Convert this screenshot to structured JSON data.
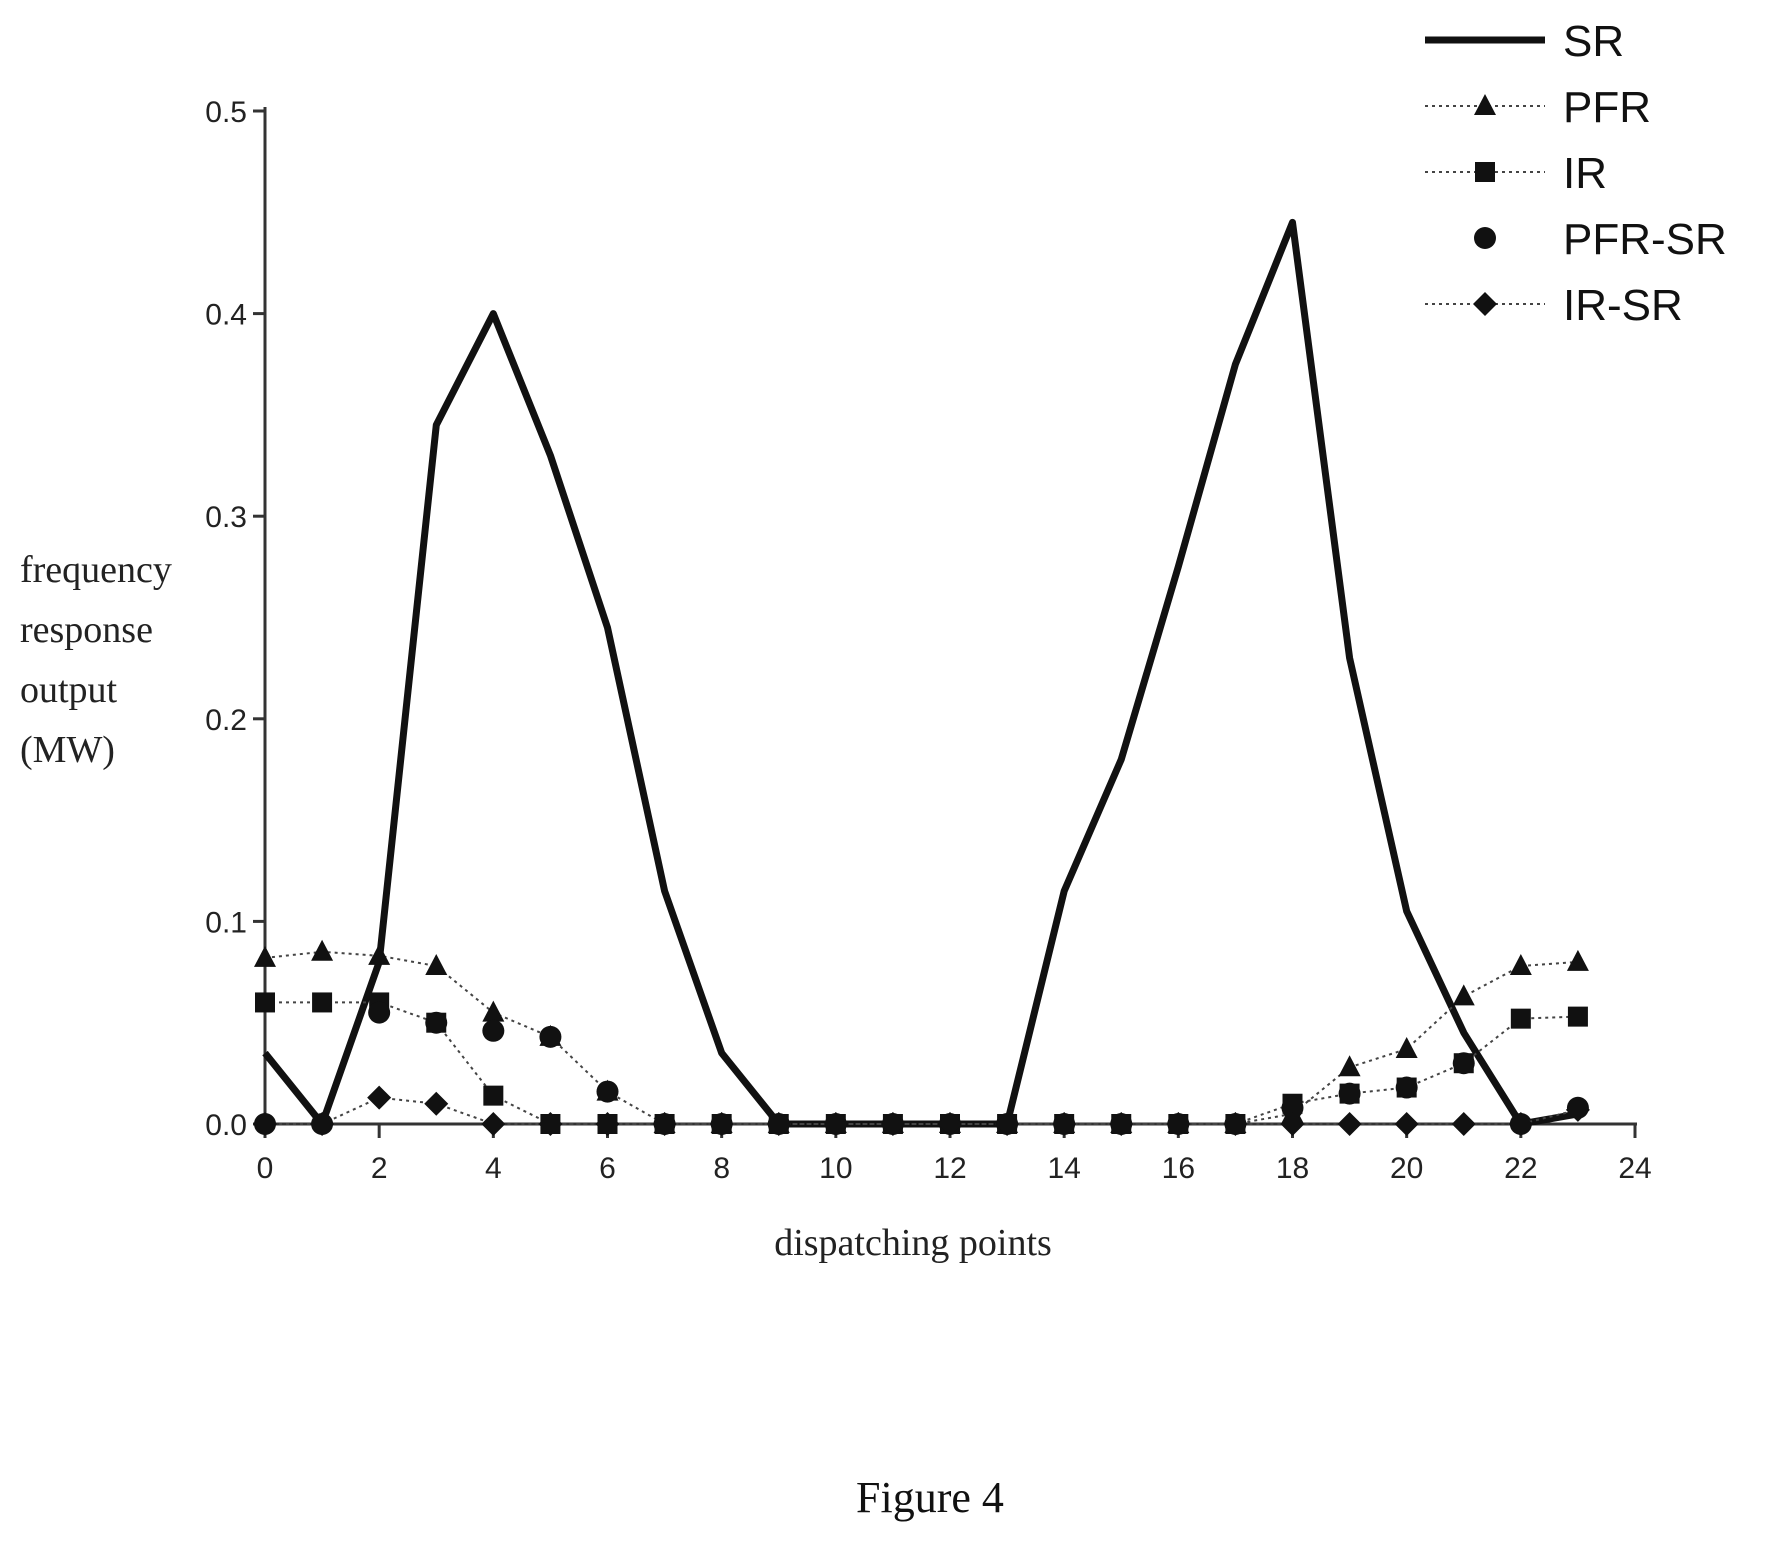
{
  "figure_caption": "Figure 4",
  "chart_data": {
    "type": "line",
    "xlabel": "dispatching points",
    "ylabel_lines": [
      "frequency",
      "response",
      "output",
      "(MW)"
    ],
    "xlim": [
      0,
      24
    ],
    "ylim": [
      0,
      0.5
    ],
    "x_ticks": [
      0,
      2,
      4,
      6,
      8,
      10,
      12,
      14,
      16,
      18,
      20,
      22,
      24
    ],
    "y_ticks": [
      "0.0",
      "0.1",
      "0.2",
      "0.3",
      "0.4",
      "0.5"
    ],
    "y_tick_values": [
      0,
      0.1,
      0.2,
      0.3,
      0.4,
      0.5
    ],
    "grid": false,
    "legend_position": "top-right",
    "x": [
      0,
      1,
      2,
      3,
      4,
      5,
      6,
      7,
      8,
      9,
      10,
      11,
      12,
      13,
      14,
      15,
      16,
      17,
      18,
      19,
      20,
      21,
      22,
      23
    ],
    "series": [
      {
        "name": "SR",
        "style": "solid-thick",
        "marker": "none",
        "values": [
          0.035,
          0,
          0.08,
          0.345,
          0.4,
          0.33,
          0.245,
          0.115,
          0.035,
          0,
          0,
          0,
          0,
          0,
          0.115,
          0.18,
          0.275,
          0.375,
          0.445,
          0.23,
          0.105,
          0.045,
          0,
          0.005
        ]
      },
      {
        "name": "PFR",
        "style": "dotted",
        "marker": "triangle",
        "values": [
          0.082,
          0.085,
          0.083,
          0.078,
          0.055,
          0.043,
          0.016,
          0,
          0,
          0,
          0,
          0,
          0,
          0,
          0,
          0,
          0,
          0,
          0.005,
          0.028,
          0.037,
          0.063,
          0.078,
          0.08
        ]
      },
      {
        "name": "IR",
        "style": "dotted",
        "marker": "square",
        "values": [
          0.06,
          0.06,
          0.06,
          0.05,
          0.014,
          0,
          0,
          0,
          0,
          0,
          0,
          0,
          0,
          0,
          0,
          0,
          0,
          0,
          0.01,
          0.015,
          0.018,
          0.03,
          0.052,
          0.053
        ]
      },
      {
        "name": "PFR-SR",
        "style": "none",
        "marker": "circle",
        "values": [
          0,
          0,
          0.055,
          0.05,
          0.046,
          0.043,
          0.016,
          0,
          0,
          0,
          0,
          0,
          0,
          0,
          0,
          0,
          0,
          0,
          0.008,
          0.015,
          0.018,
          0.03,
          0,
          0.008
        ]
      },
      {
        "name": "IR-SR",
        "style": "dotted",
        "marker": "diamond",
        "values": [
          0,
          0,
          0.013,
          0.01,
          0,
          0,
          0,
          0,
          0,
          0,
          0,
          0,
          0,
          0,
          0,
          0,
          0,
          0,
          0,
          0,
          0,
          0,
          0,
          0.007
        ]
      }
    ]
  }
}
